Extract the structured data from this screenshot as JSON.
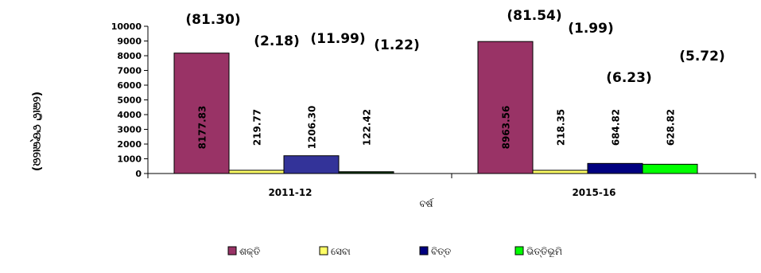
{
  "chart_data": {
    "type": "bar",
    "title": "",
    "xlabel": "ବର୍ଷ",
    "ylabel": "(କୋଟି ଟଙ୍କାରେ)",
    "ylim": [
      0,
      10000
    ],
    "yticks": [
      0,
      1000,
      2000,
      3000,
      4000,
      5000,
      6000,
      7000,
      8000,
      9000,
      10000
    ],
    "categories": [
      "2011-12",
      "2015-16"
    ],
    "series": [
      {
        "name": "ଶକ୍ତି",
        "color": "#993366",
        "values": [
          8177.83,
          8963.56
        ],
        "labels": [
          "8177.83",
          "8963.56"
        ],
        "shares": [
          "(81.30)",
          "(81.54)"
        ]
      },
      {
        "name": "ସେବା",
        "color": "#ffff66",
        "values": [
          219.77,
          218.35
        ],
        "labels": [
          "219.77",
          "218.35"
        ],
        "shares": [
          "(2.18)",
          "(1.99)"
        ]
      },
      {
        "name": "ବିତ୍ତ",
        "colors": [
          "#333399",
          "#000080"
        ],
        "color": "#000080",
        "values": [
          1206.3,
          684.82
        ],
        "labels": [
          "1206.30",
          "684.82"
        ],
        "shares": [
          "(11.99)",
          "(6.23)"
        ]
      },
      {
        "name": "ଭିତ୍ତିଭୂମି",
        "colors": [
          "#003300",
          "#00ff00"
        ],
        "color": "#00ff00",
        "values": [
          122.42,
          628.82
        ],
        "labels": [
          "122.42",
          "628.82"
        ],
        "shares": [
          "(1.22)",
          "(5.72)"
        ]
      }
    ],
    "grid": false,
    "legend": "bottom"
  }
}
